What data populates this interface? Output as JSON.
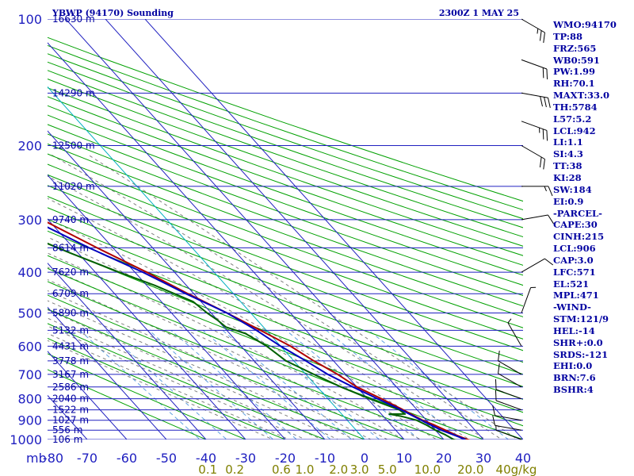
{
  "header": {
    "station": "YBWP (94170) Sounding",
    "datetime": "2300Z  1 MAY 25"
  },
  "indices": [
    "WMO:94170",
    "TP:88",
    "FRZ:565",
    "WB0:591",
    "PW:1.99",
    "RH:70.1",
    "MAXT:33.0",
    "TH:5784",
    "L57:5.2",
    "LCL:942",
    "LI:1.1",
    "SI:4.3",
    "TT:38",
    "KI:28",
    "SW:184",
    "EI:0.9",
    "-PARCEL-",
    "CAPE:30",
    "CINH:215",
    "LCL:906",
    "CAP:3.0",
    "LFC:571",
    "EL:521",
    "MPL:471",
    "-WIND-",
    "STM:121/9",
    "HEL:-14",
    "SHR+:0.0",
    "SRDS:-121",
    "EHI:0.0",
    "BRN:7.6",
    "BSHR:4"
  ],
  "chart_data": {
    "type": "line",
    "subtype": "skew-t log-p",
    "x_unit_label": "°C",
    "y_unit_label": "mb",
    "xlim": [
      -80,
      40
    ],
    "ylim": [
      1000,
      100
    ],
    "y_scale": "log",
    "temperature_ticks": [
      -80,
      -70,
      -60,
      -50,
      -40,
      -30,
      -20,
      -10,
      0,
      10,
      20,
      30,
      40
    ],
    "pressure_ticks": [
      100,
      200,
      300,
      400,
      500,
      600,
      700,
      800,
      900,
      1000
    ],
    "mixing_ratio_labels": [
      "0.1",
      "0.2",
      "0.6",
      "1.0",
      "2.0",
      "3.0",
      "5.0",
      "10.0",
      "20.0",
      "40g/kg"
    ],
    "mixing_ratio_values": [
      0.1,
      0.2,
      0.6,
      1.0,
      2.0,
      3.0,
      5.0,
      10.0,
      20.0,
      40.0
    ],
    "height_labels": [
      {
        "p": 100,
        "label": "16630 m"
      },
      {
        "p": 150,
        "label": "14290 m"
      },
      {
        "p": 200,
        "label": "12500 m"
      },
      {
        "p": 250,
        "label": "11020 m"
      },
      {
        "p": 300,
        "label": "9740 m"
      },
      {
        "p": 350,
        "label": "8614 m"
      },
      {
        "p": 400,
        "label": "7620 m"
      },
      {
        "p": 450,
        "label": "6709 m"
      },
      {
        "p": 500,
        "label": "5890 m"
      },
      {
        "p": 550,
        "label": "5132 m"
      },
      {
        "p": 600,
        "label": "4431 m"
      },
      {
        "p": 650,
        "label": "3778 m"
      },
      {
        "p": 700,
        "label": "3167 m"
      },
      {
        "p": 750,
        "label": "2586 m"
      },
      {
        "p": 800,
        "label": "2040 m"
      },
      {
        "p": 850,
        "label": "1522 m"
      },
      {
        "p": 900,
        "label": "1027 m"
      },
      {
        "p": 950,
        "label": "556 m"
      },
      {
        "p": 1000,
        "label": "106 m"
      }
    ],
    "series": [
      {
        "role": "temperature",
        "color": "#b00000",
        "points": [
          {
            "p": 1003,
            "t": 26.5
          },
          {
            "p": 1000,
            "t": 26.0
          },
          {
            "p": 975,
            "t": 24.0
          },
          {
            "p": 950,
            "t": 22.5
          },
          {
            "p": 925,
            "t": 21.0
          },
          {
            "p": 900,
            "t": 19.0
          },
          {
            "p": 850,
            "t": 16.5
          },
          {
            "p": 800,
            "t": 13.5
          },
          {
            "p": 750,
            "t": 10.0
          },
          {
            "p": 700,
            "t": 8.0
          },
          {
            "p": 650,
            "t": 5.0
          },
          {
            "p": 600,
            "t": 2.5
          },
          {
            "p": 550,
            "t": -1.5
          },
          {
            "p": 500,
            "t": -6.0
          },
          {
            "p": 450,
            "t": -11.5
          },
          {
            "p": 400,
            "t": -17.0
          },
          {
            "p": 350,
            "t": -24.0
          },
          {
            "p": 300,
            "t": -31.5
          },
          {
            "p": 250,
            "t": -41.0
          },
          {
            "p": 200,
            "t": -52.0
          },
          {
            "p": 150,
            "t": -66.0
          },
          {
            "p": 130,
            "t": -73.0
          },
          {
            "p": 115,
            "t": -79.0
          },
          {
            "p": 108,
            "t": -80.0
          }
        ]
      },
      {
        "role": "dewpoint",
        "color": "#006000",
        "points": [
          {
            "p": 1003,
            "t": 23.0
          },
          {
            "p": 1000,
            "t": 22.5
          },
          {
            "p": 975,
            "t": 21.5
          },
          {
            "p": 950,
            "t": 20.0
          },
          {
            "p": 925,
            "t": 19.0
          },
          {
            "p": 900,
            "t": 17.5
          },
          {
            "p": 880,
            "t": 14.5
          },
          {
            "p": 870,
            "t": 12.0
          },
          {
            "p": 870,
            "t": 16.0
          },
          {
            "p": 850,
            "t": 15.5
          },
          {
            "p": 800,
            "t": 10.5
          },
          {
            "p": 750,
            "t": 6.0
          },
          {
            "p": 700,
            "t": 2.0
          },
          {
            "p": 650,
            "t": -2.0
          },
          {
            "p": 600,
            "t": -3.5
          },
          {
            "p": 560,
            "t": -6.0
          },
          {
            "p": 540,
            "t": -9.5
          },
          {
            "p": 520,
            "t": -10.0
          },
          {
            "p": 500,
            "t": -11.0
          },
          {
            "p": 470,
            "t": -12.0
          },
          {
            "p": 430,
            "t": -18.0
          },
          {
            "p": 400,
            "t": -24.0
          },
          {
            "p": 360,
            "t": -32.0
          },
          {
            "p": 330,
            "t": -38.0
          },
          {
            "p": 300,
            "t": -44.0
          },
          {
            "p": 270,
            "t": -48.0
          },
          {
            "p": 260,
            "t": -54.0
          },
          {
            "p": 225,
            "t": -58.0
          },
          {
            "p": 200,
            "t": -63.0
          },
          {
            "p": 180,
            "t": -66.0
          },
          {
            "p": 165,
            "t": -72.0
          },
          {
            "p": 150,
            "t": -74.0
          },
          {
            "p": 135,
            "t": -78.0
          },
          {
            "p": 125,
            "t": -80.0
          }
        ]
      },
      {
        "role": "parcel",
        "color": "#0000c0",
        "points": [
          {
            "p": 1000,
            "t": 25.5
          },
          {
            "p": 950,
            "t": 21.5
          },
          {
            "p": 906,
            "t": 19.0
          },
          {
            "p": 850,
            "t": 16.0
          },
          {
            "p": 800,
            "t": 12.5
          },
          {
            "p": 750,
            "t": 9.0
          },
          {
            "p": 700,
            "t": 5.5
          },
          {
            "p": 650,
            "t": 3.0
          },
          {
            "p": 600,
            "t": 0.0
          },
          {
            "p": 550,
            "t": -2.5
          },
          {
            "p": 500,
            "t": -6.0
          },
          {
            "p": 450,
            "t": -12.0
          },
          {
            "p": 400,
            "t": -18.0
          },
          {
            "p": 350,
            "t": -26.0
          },
          {
            "p": 300,
            "t": -34.0
          },
          {
            "p": 250,
            "t": -44.0
          },
          {
            "p": 200,
            "t": -56.0
          },
          {
            "p": 150,
            "t": -70.0
          },
          {
            "p": 120,
            "t": -80.0
          }
        ]
      }
    ],
    "wind_barbs": [
      {
        "p": 100,
        "dir": 300,
        "kt": 25
      },
      {
        "p": 125,
        "dir": 290,
        "kt": 20
      },
      {
        "p": 150,
        "dir": 280,
        "kt": 30
      },
      {
        "p": 175,
        "dir": 290,
        "kt": 25
      },
      {
        "p": 200,
        "dir": 300,
        "kt": 20
      },
      {
        "p": 250,
        "dir": 270,
        "kt": 15
      },
      {
        "p": 300,
        "dir": 260,
        "kt": 10
      },
      {
        "p": 400,
        "dir": 240,
        "kt": 10
      },
      {
        "p": 500,
        "dir": 200,
        "kt": 5
      },
      {
        "p": 600,
        "dir": 150,
        "kt": 5
      },
      {
        "p": 700,
        "dir": 120,
        "kt": 10
      },
      {
        "p": 750,
        "dir": 120,
        "kt": 10
      },
      {
        "p": 800,
        "dir": 110,
        "kt": 10
      },
      {
        "p": 850,
        "dir": 110,
        "kt": 10
      },
      {
        "p": 900,
        "dir": 100,
        "kt": 10
      },
      {
        "p": 950,
        "dir": 100,
        "kt": 10
      },
      {
        "p": 1000,
        "dir": 110,
        "kt": 5
      }
    ],
    "colors": {
      "isobar": "#2020c0",
      "isotherm": "#2020c0",
      "isotherm_zero": "#00b0c0",
      "dry_adiabat": "#00a000",
      "moist_adiabat": "#808080",
      "mixing_ratio": "#60a0e0",
      "mixing_label": "#808000",
      "text": "#0000a0"
    }
  }
}
